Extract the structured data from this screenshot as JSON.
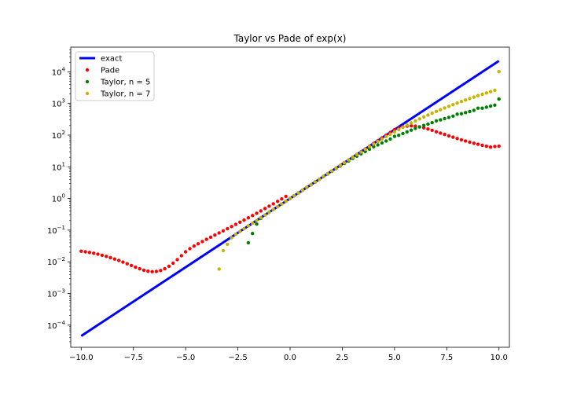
{
  "chart_data": {
    "type": "scatter",
    "title": "Taylor vs Pade of exp(x)",
    "xlabel": "",
    "ylabel": "",
    "xlim": [
      -10.5,
      10.5
    ],
    "ylim": [
      2e-05,
      60000
    ],
    "yscale": "log",
    "grid": false,
    "legend_position": "top-left",
    "x_ticks": [
      {
        "value": -10.0,
        "label": "−10.0"
      },
      {
        "value": -7.5,
        "label": "−7.5"
      },
      {
        "value": -5.0,
        "label": "−5.0"
      },
      {
        "value": -2.5,
        "label": "−2.5"
      },
      {
        "value": 0.0,
        "label": "0.0"
      },
      {
        "value": 2.5,
        "label": "2.5"
      },
      {
        "value": 5.0,
        "label": "5.0"
      },
      {
        "value": 7.5,
        "label": "7.5"
      },
      {
        "value": 10.0,
        "label": "10.0"
      }
    ],
    "y_ticks": [
      {
        "value": 0.0001,
        "base": "10",
        "exp": "−4"
      },
      {
        "value": 0.001,
        "base": "10",
        "exp": "−3"
      },
      {
        "value": 0.01,
        "base": "10",
        "exp": "−2"
      },
      {
        "value": 0.1,
        "base": "10",
        "exp": "−1"
      },
      {
        "value": 1,
        "base": "10",
        "exp": "0"
      },
      {
        "value": 10,
        "base": "10",
        "exp": "1"
      },
      {
        "value": 100,
        "base": "10",
        "exp": "2"
      },
      {
        "value": 1000,
        "base": "10",
        "exp": "3"
      },
      {
        "value": 10000,
        "base": "10",
        "exp": "4"
      }
    ],
    "series": [
      {
        "name": "exact",
        "style": "line",
        "color": "#0000ff",
        "x": [
          -10.0,
          10.0
        ],
        "y": [
          4.54e-05,
          22026.5
        ]
      },
      {
        "name": "Pade",
        "style": "scatter",
        "color": "#ff0000",
        "x": [
          -10.0,
          -9.8,
          -9.6,
          -9.4,
          -9.2,
          -9.0,
          -8.8,
          -8.6,
          -8.4,
          -8.2,
          -8.0,
          -7.8,
          -7.6,
          -7.4,
          -7.2,
          -7.0,
          -6.8,
          -6.6,
          -6.4,
          -6.2,
          -6.0,
          -5.8,
          -5.6,
          -5.4,
          -5.2,
          -5.0,
          -4.8,
          -4.6,
          -4.4,
          -4.2,
          -4.0,
          -3.8,
          -3.6,
          -3.4,
          -3.2,
          -3.0,
          -2.8,
          -2.6,
          -2.4,
          -2.2,
          -2.0,
          -1.8,
          -1.6,
          -1.4,
          -1.2,
          -1.0,
          -0.8,
          -0.6,
          -0.4,
          -0.2,
          0.0,
          0.2,
          0.4,
          0.6,
          0.8,
          1.0,
          1.2,
          1.4,
          1.6,
          1.8,
          2.0,
          2.2,
          2.4,
          2.6,
          2.8,
          3.0,
          3.2,
          3.4,
          3.6,
          3.8,
          4.0,
          4.2,
          4.4,
          4.6,
          4.8,
          5.0,
          5.2,
          5.4,
          5.6,
          5.8,
          6.0,
          6.2,
          6.4,
          6.6,
          6.8,
          7.0,
          7.2,
          7.4,
          7.6,
          7.8,
          8.0,
          8.2,
          8.4,
          8.6,
          8.8,
          9.0,
          9.2,
          9.4,
          9.6,
          9.8,
          10.0
        ],
        "y": [
          0.0216,
          0.0207,
          0.0197,
          0.0186,
          0.0174,
          0.0161,
          0.0148,
          0.0135,
          0.0122,
          0.011,
          0.00977,
          0.00866,
          0.00765,
          0.00676,
          0.00601,
          0.00543,
          0.00504,
          0.00487,
          0.00495,
          0.00532,
          0.00605,
          0.00723,
          0.00904,
          0.0117,
          0.0156,
          0.0207,
          0.026,
          0.0313,
          0.0371,
          0.0437,
          0.0512,
          0.0598,
          0.0698,
          0.0815,
          0.0952,
          0.111,
          0.13,
          0.152,
          0.178,
          0.208,
          0.245,
          0.289,
          0.342,
          0.405,
          0.48,
          0.57,
          0.679,
          0.809,
          0.967,
          1.16,
          1.0,
          1.22,
          1.49,
          1.82,
          2.23,
          2.72,
          3.32,
          4.06,
          4.95,
          6.04,
          7.39,
          9.02,
          11.0,
          13.5,
          16.4,
          20.1,
          24.5,
          29.9,
          36.6,
          44.7,
          54.6,
          66.7,
          81.5,
          99.5,
          121,
          148,
          167,
          183,
          193,
          196,
          192,
          183,
          170,
          156,
          142,
          128,
          116,
          105,
          94.8,
          86.0,
          78.2,
          71.4,
          65.4,
          60.1,
          55.5,
          51.4,
          47.8,
          44.7,
          41.9,
          44.0,
          45.0
        ]
      },
      {
        "name": "Taylor, n = 5",
        "style": "scatter",
        "color": "#008000",
        "x": [
          -2.0,
          -1.8,
          -1.6,
          -1.4,
          -1.2,
          -1.0,
          -0.8,
          -0.6,
          -0.4,
          -0.2,
          0.0,
          0.2,
          0.4,
          0.6,
          0.8,
          1.0,
          1.2,
          1.4,
          1.6,
          1.8,
          2.0,
          2.2,
          2.4,
          2.6,
          2.8,
          3.0,
          3.2,
          3.4,
          3.6,
          3.8,
          4.0,
          4.2,
          4.4,
          4.6,
          4.8,
          5.0,
          5.2,
          5.4,
          5.6,
          5.8,
          6.0,
          6.2,
          6.4,
          6.6,
          6.8,
          7.0,
          7.2,
          7.4,
          7.6,
          7.8,
          8.0,
          8.2,
          8.4,
          8.6,
          8.8,
          9.0,
          9.2,
          9.4,
          9.6,
          9.8,
          10.0
        ],
        "y": [
          0.04,
          0.0782,
          0.155,
          0.235,
          0.301,
          0.367,
          0.449,
          0.549,
          0.67,
          0.819,
          1.0,
          1.22,
          1.49,
          1.82,
          2.22,
          2.72,
          3.31,
          4.03,
          4.9,
          5.93,
          7.27,
          8.8,
          10.6,
          12.7,
          15.2,
          18.4,
          21.6,
          25.7,
          30.4,
          35.7,
          42.9,
          48.9,
          56.7,
          65.4,
          75.2,
          91.4,
          98.5,
          112,
          127,
          143,
          163,
          181,
          202,
          224,
          248,
          283,
          302,
          332,
          364,
          398,
          459,
          473,
          515,
          559,
          606,
          710,
          709,
          765,
          824,
          887,
          1378
        ]
      },
      {
        "name": "Taylor, n = 7",
        "style": "scatter",
        "color": "#c8b400",
        "x": [
          -3.4,
          -3.2,
          -3.0,
          -2.8,
          -2.6,
          -2.4,
          -2.2,
          -2.0,
          -1.8,
          -1.6,
          -1.4,
          -1.2,
          -1.0,
          -0.8,
          -0.6,
          -0.4,
          -0.2,
          0.0,
          0.2,
          0.4,
          0.6,
          0.8,
          1.0,
          1.2,
          1.4,
          1.6,
          1.8,
          2.0,
          2.2,
          2.4,
          2.6,
          2.8,
          3.0,
          3.2,
          3.4,
          3.6,
          3.8,
          4.0,
          4.2,
          4.4,
          4.6,
          4.8,
          5.0,
          5.2,
          5.4,
          5.6,
          5.8,
          6.0,
          6.2,
          6.4,
          6.6,
          6.8,
          7.0,
          7.2,
          7.4,
          7.6,
          7.8,
          8.0,
          8.2,
          8.4,
          8.6,
          8.8,
          9.0,
          9.2,
          9.4,
          9.6,
          9.8,
          10.0
        ],
        "y": [
          0.0059,
          0.0225,
          0.0357,
          0.0574,
          0.074,
          0.0904,
          0.111,
          0.135,
          0.165,
          0.202,
          0.247,
          0.301,
          0.368,
          0.449,
          0.549,
          0.67,
          0.819,
          1.0,
          1.22,
          1.49,
          1.82,
          2.23,
          2.72,
          3.32,
          4.06,
          4.95,
          6.05,
          7.39,
          9.02,
          11.0,
          13.4,
          16.4,
          20.0,
          24.3,
          29.5,
          35.8,
          43.3,
          52.2,
          62.8,
          75.3,
          90.0,
          107,
          127,
          150,
          177,
          207,
          242,
          281,
          325,
          375,
          430,
          492,
          561,
          637,
          722,
          815,
          917,
          1029,
          1152,
          1286,
          1431,
          1590,
          1763,
          1949,
          2151,
          2369,
          2604,
          10086
        ]
      }
    ]
  }
}
